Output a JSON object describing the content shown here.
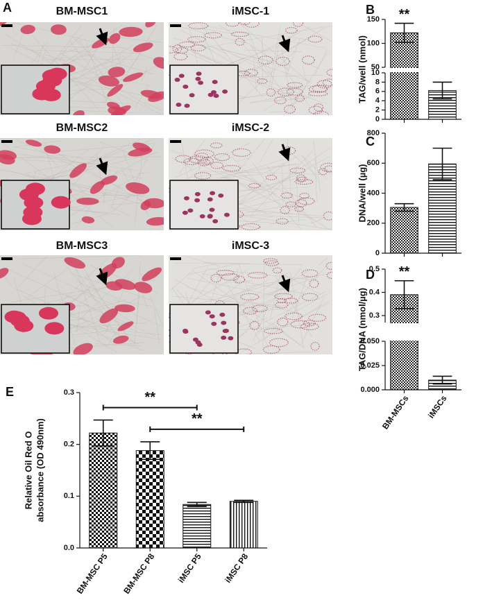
{
  "panel_a": {
    "label": "A",
    "images": [
      {
        "title": "BM-MSC1"
      },
      {
        "title": "iMSC-1"
      },
      {
        "title": "BM-MSC2"
      },
      {
        "title": "iMSC-2"
      },
      {
        "title": "BM-MSC3"
      },
      {
        "title": "iMSC-3"
      }
    ]
  },
  "chart_data": [
    {
      "type": "bar",
      "panel": "B",
      "y_label": "TAG/well (nmol)",
      "categories": [
        null,
        null
      ],
      "values": [
        122,
        6.2
      ],
      "errors": [
        20,
        1.8
      ],
      "patterns": [
        "crosshatch",
        "hlines"
      ],
      "annotations": [
        {
          "text": "**",
          "category": 0
        }
      ],
      "axis_segments": [
        {
          "ylim": [
            0,
            10
          ],
          "yticks": [
            0,
            2,
            4,
            6,
            8,
            10
          ]
        },
        {
          "ylim": [
            50,
            150
          ],
          "yticks": [
            50,
            100,
            150
          ]
        }
      ]
    },
    {
      "type": "bar",
      "panel": "C",
      "y_label": "DNA/well (µg)",
      "categories": [
        null,
        null
      ],
      "values": [
        305,
        595
      ],
      "errors": [
        25,
        105
      ],
      "patterns": [
        "crosshatch",
        "hlines"
      ],
      "ylim": [
        0,
        800
      ],
      "yticks": [
        0,
        200,
        400,
        600,
        800
      ]
    },
    {
      "type": "bar",
      "panel": "D",
      "y_label": "TAG/DNA (nmol/µg)",
      "categories": [
        "BM-MSCs",
        "iMSCs"
      ],
      "values": [
        0.39,
        0.01
      ],
      "errors": [
        0.06,
        0.004
      ],
      "patterns": [
        "crosshatch",
        "hlines"
      ],
      "annotations": [
        {
          "text": "**",
          "category": 0
        }
      ],
      "axis_segments": [
        {
          "ylim": [
            0,
            0.05
          ],
          "yticks": [
            {
              "value": 0,
              "label": "0.000"
            },
            {
              "value": 0.025,
              "label": "0.025"
            },
            {
              "value": 0.05,
              "label": "0.050"
            }
          ]
        },
        {
          "ylim": [
            0.27,
            0.5
          ],
          "yticks": [
            0.3,
            0.4,
            0.5
          ]
        }
      ]
    },
    {
      "type": "bar",
      "panel": "E",
      "y_label": [
        "Relative Oil Red O",
        "absorbance (OD 490nm)"
      ],
      "categories": [
        "BM-MSC P5",
        "BM-MSC P8",
        "iMSC P5",
        "iMSC P8"
      ],
      "values": [
        0.222,
        0.188,
        0.084,
        0.09
      ],
      "errors": [
        0.025,
        0.017,
        0.004,
        0.002
      ],
      "patterns": [
        "checker",
        "checker-large",
        "hlines",
        "vlines"
      ],
      "comparisons": [
        {
          "pair": [
            0,
            2
          ],
          "label": "**"
        },
        {
          "pair": [
            1,
            3
          ],
          "label": "**"
        }
      ],
      "ylim": [
        0,
        0.3
      ],
      "yticks": [
        {
          "value": 0,
          "label": "0.0"
        },
        0.1,
        0.2,
        0.3
      ]
    }
  ]
}
